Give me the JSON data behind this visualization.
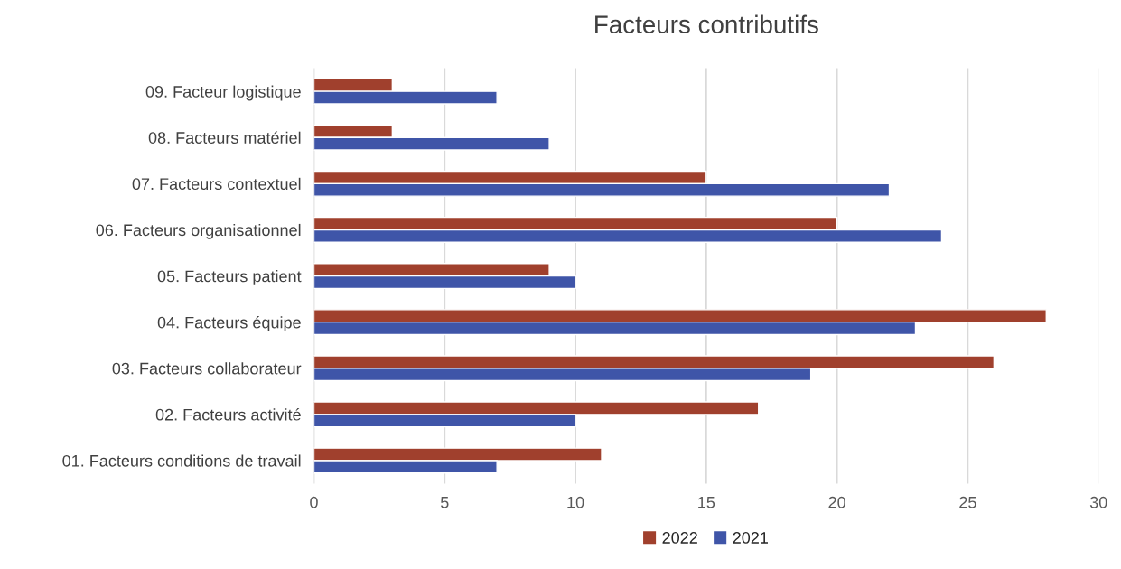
{
  "chart_data": {
    "type": "bar",
    "orientation": "horizontal",
    "title": "Facteurs contributifs",
    "categories": [
      "09. Facteur logistique",
      "08. Facteurs matériel",
      "07. Facteurs contextuel",
      "06. Facteurs organisationnel",
      "05. Facteurs patient",
      "04. Facteurs équipe",
      "03. Facteurs collaborateur",
      "02. Facteurs activité",
      "01. Facteurs conditions de travail"
    ],
    "series": [
      {
        "name": "2022",
        "color": "#a0402d",
        "values": [
          3,
          3,
          15,
          20,
          9,
          28,
          26,
          17,
          11
        ]
      },
      {
        "name": "2021",
        "color": "#3f55a8",
        "values": [
          7,
          9,
          22,
          24,
          10,
          23,
          19,
          10,
          7
        ]
      }
    ],
    "xlim": [
      0,
      30
    ],
    "xticks": [
      0,
      5,
      10,
      15,
      20,
      25,
      30
    ],
    "grid": "x",
    "legend": "bottom"
  }
}
